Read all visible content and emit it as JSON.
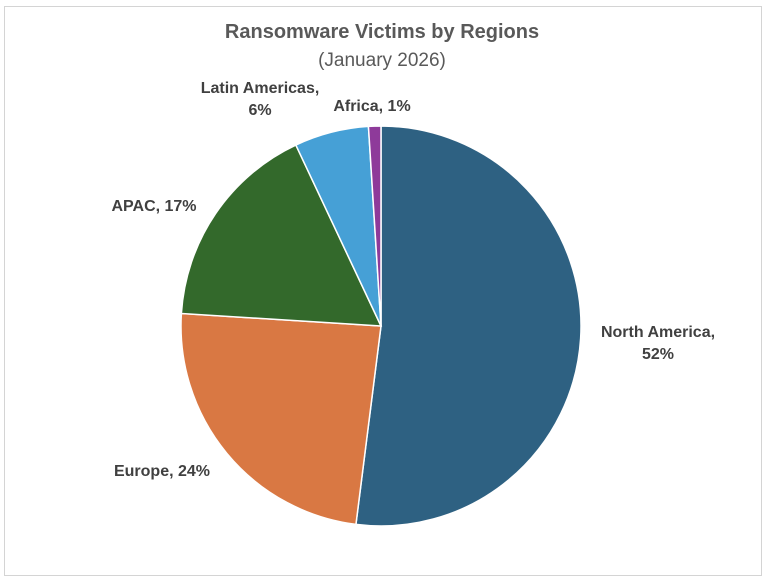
{
  "chart_data": {
    "type": "pie",
    "title": "Ransomware Victims by Regions",
    "subtitle": "(January 2026)",
    "start_angle_deg": 0,
    "direction": "clockwise",
    "legend": "none",
    "slices": [
      {
        "name": "North America",
        "value": 52,
        "color": "#2E6182",
        "label_line1": "North America,",
        "label_line2": "52%"
      },
      {
        "name": "Europe",
        "value": 24,
        "color": "#D97843",
        "label_line1": "Europe, 24%",
        "label_line2": ""
      },
      {
        "name": "APAC",
        "value": 17,
        "color": "#33692B",
        "label_line1": "APAC, 17%",
        "label_line2": ""
      },
      {
        "name": "Latin Americas",
        "value": 6,
        "color": "#46A0D6",
        "label_line1": "Latin Americas,",
        "label_line2": "6%"
      },
      {
        "name": "Africa",
        "value": 1,
        "color": "#8E3A9A",
        "label_line1": "Africa, 1%",
        "label_line2": ""
      }
    ]
  }
}
